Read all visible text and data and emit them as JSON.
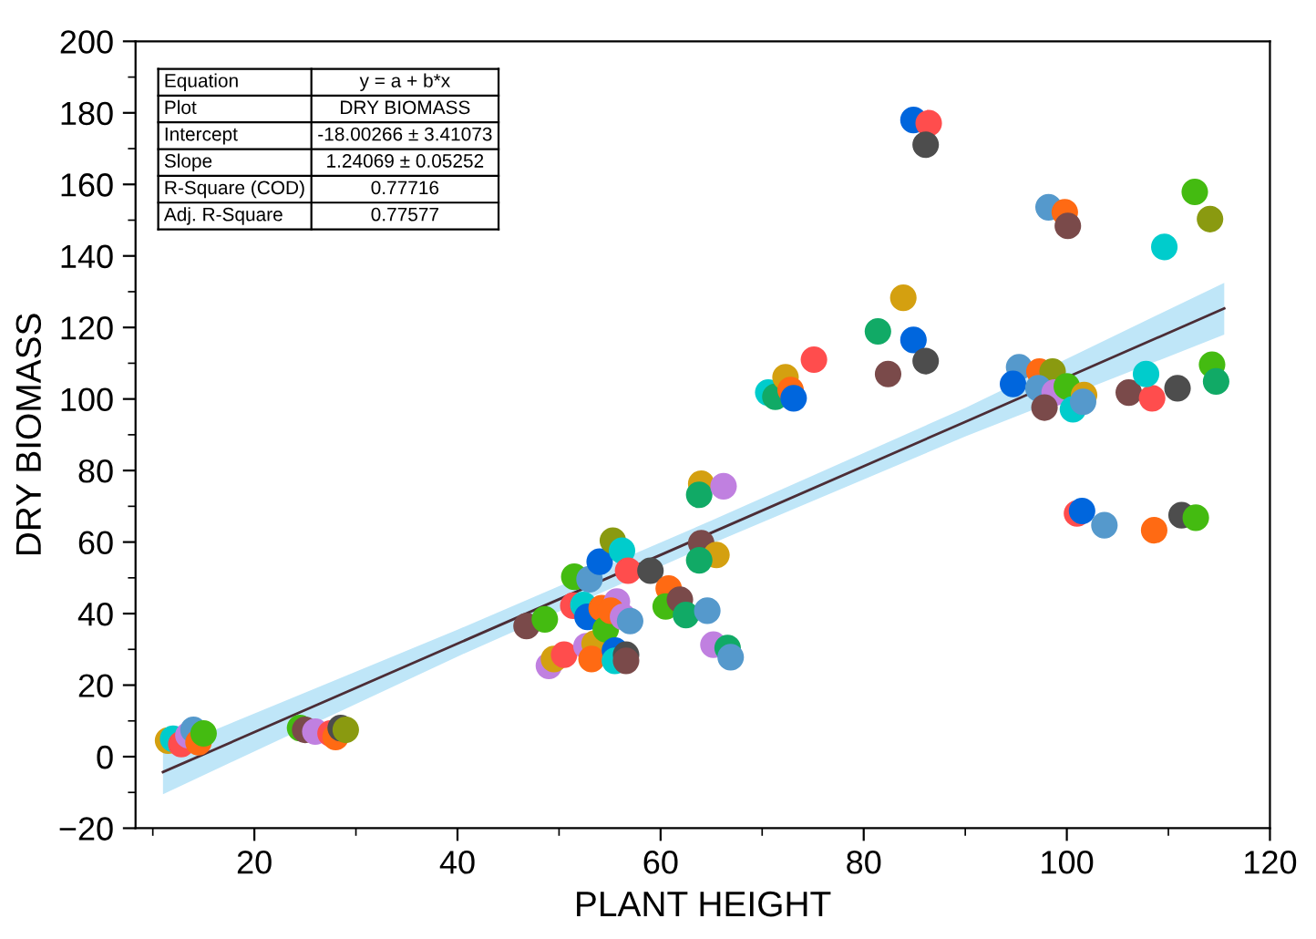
{
  "chart_data": {
    "type": "scatter",
    "xlabel": "PLANT HEIGHT",
    "ylabel": "DRY BIOMASS",
    "xlim": [
      8.3,
      120
    ],
    "ylim": [
      -20,
      200
    ],
    "xticks": [
      {
        "value": 10,
        "label": null
      },
      20,
      {
        "value": 30,
        "label": null
      },
      40,
      {
        "value": 50,
        "label": null
      },
      60,
      {
        "value": 70,
        "label": null
      },
      80,
      {
        "value": 90,
        "label": null
      },
      100,
      {
        "value": 110,
        "label": null
      },
      120
    ],
    "yticks": [
      -20,
      {
        "value": -10,
        "label": null
      },
      0,
      {
        "value": 10,
        "label": null
      },
      20,
      {
        "value": 30,
        "label": null
      },
      40,
      {
        "value": 50,
        "label": null
      },
      60,
      {
        "value": 70,
        "label": null
      },
      80,
      {
        "value": 90,
        "label": null
      },
      100,
      {
        "value": 110,
        "label": null
      },
      120,
      {
        "value": 130,
        "label": null
      },
      140,
      {
        "value": 150,
        "label": null
      },
      160,
      {
        "value": 170,
        "label": null
      },
      180,
      {
        "value": 190,
        "label": null
      },
      200
    ],
    "grid": false,
    "annotations": [
      "Equation",
      "y = a + b*x",
      "Plot",
      "DRY BIOMASS",
      "Intercept",
      "-18.00266 ± 3.41073",
      "Slope",
      "1.24069 ± 0.05252",
      "R-Square (COD)",
      "0.77716",
      "Adj. R-Square",
      "0.77577"
    ],
    "series": [
      {
        "type": "line",
        "color": "#4b2d36",
        "x": [
          11,
          40,
          65,
          90,
          115.5
        ],
        "values": [
          -4.3,
          31.6,
          62.6,
          93.6,
          125.3
        ],
        "lower": [
          -10.5,
          28,
          59.5,
          89.5,
          118
        ],
        "upper": [
          1.5,
          35.5,
          66,
          97.5,
          132.5
        ]
      },
      {
        "marker": "circle",
        "x": [
          11.5,
          12,
          12.8,
          13.5,
          14,
          14.5,
          15,
          24.5,
          25,
          26,
          27,
          27.5,
          28,
          28.5,
          29,
          46.8,
          48.6,
          49.0,
          49.5,
          50.5,
          51.5,
          53.0,
          51.4,
          52.4,
          52.8,
          52.7,
          53.5,
          53.2,
          54.0,
          54.2,
          54.6,
          55.3,
          56.2,
          56.8,
          55.7,
          55.1,
          56.3,
          57.0,
          55.5,
          55.5,
          56.6,
          56.6,
          59.0,
          60.8,
          60.5,
          61.9,
          62.5,
          64.0,
          63.8,
          66.2,
          64.0,
          65.5,
          63.8,
          64.6,
          65.2,
          66.6,
          66.9,
          70.6,
          71.3,
          72.3,
          72.8,
          73.1,
          75.1,
          81.4,
          82.4,
          83.9,
          84.9,
          86.4,
          86.1,
          84.9,
          86.1,
          98.2,
          99.8,
          100.1,
          95.3,
          94.7,
          97.3,
          98.6,
          97.2,
          98.8,
          97.8,
          100.0,
          100.6,
          101.7,
          101.6,
          106.1,
          108.4,
          107.8,
          110.9,
          109.6,
          112.6,
          114.1,
          114.3,
          114.7,
          101.0,
          101.5,
          103.7,
          108.6,
          111.3,
          112.7
        ],
        "values": [
          4.5,
          5,
          3.5,
          6,
          7.5,
          4,
          6.5,
          8,
          7.5,
          7,
          null,
          6.5,
          5.5,
          8,
          7.5,
          36.5,
          38.4,
          25.4,
          27.3,
          28.5,
          50.3,
          49.6,
          42.2,
          42.4,
          39.1,
          30.9,
          31.6,
          27.3,
          54.5,
          41.5,
          35.6,
          60.4,
          57.6,
          52.0,
          43.4,
          40.8,
          39.1,
          37.9,
          29.7,
          26.8,
          28.5,
          26.8,
          52.0,
          47.0,
          42.0,
          43.9,
          39.6,
          76.3,
          73.2,
          75.6,
          59.7,
          56.4,
          54.9,
          40.8,
          31.3,
          30.4,
          27.8,
          101.8,
          100.6,
          106.1,
          102.5,
          100.2,
          111.0,
          118.9,
          107.0,
          128.3,
          178.0,
          177.1,
          171.1,
          116.5,
          110.6,
          153.6,
          152.2,
          148.4,
          108.9,
          104.2,
          107.7,
          107.7,
          103.0,
          101.8,
          97.6,
          103.5,
          97.1,
          101.1,
          99.2,
          101.8,
          100.2,
          107.0,
          103.0,
          142.5,
          157.9,
          150.3,
          109.6,
          104.9,
          68.0,
          68.7,
          64.7,
          63.3,
          67.5,
          66.8
        ],
        "colors": [
          "#d4a010",
          "#00cccc",
          "#ff4d4d",
          "#c080e0",
          "#5599cc",
          "#ff6a13",
          "#44bb11",
          "#44bb11",
          "#7a4a4a",
          "#c080e0",
          "#5599cc",
          "#ff4d4d",
          "#ff6a13",
          "#4d4d4d",
          "#8a9a10",
          "#7a4a4a",
          "#44bb11",
          "#c080e0",
          "#d4a010",
          "#ff4d4d",
          "#44bb11",
          "#5599cc",
          "#ff4d4d",
          "#00cccc",
          "#0066dd",
          "#c080e0",
          "#d4a010",
          "#ff6a13",
          "#0066dd",
          "#ff6a13",
          "#44bb11",
          "#8a9a10",
          "#00cccc",
          "#ff4d4d",
          "#c080e0",
          "#ff6a13",
          "#c080e0",
          "#5599cc",
          "#0066dd",
          "#00cccc",
          "#4d4d4d",
          "#7a4a4a",
          "#4d4d4d",
          "#ff6a13",
          "#44bb11",
          "#7a4a4a",
          "#11aa66",
          "#d4a010",
          "#11aa66",
          "#c080e0",
          "#7a4a4a",
          "#d4a010",
          "#11aa66",
          "#5599cc",
          "#c080e0",
          "#11aa66",
          "#5599cc",
          "#00cccc",
          "#11aa66",
          "#d4a010",
          "#ff6a13",
          "#0066dd",
          "#ff4d4d",
          "#11aa66",
          "#7a4a4a",
          "#d4a010",
          "#0066dd",
          "#ff4d4d",
          "#4d4d4d",
          "#0066dd",
          "#4d4d4d",
          "#5599cc",
          "#ff6a13",
          "#7a4a4a",
          "#5599cc",
          "#0066dd",
          "#ff6a13",
          "#8a9a10",
          "#5599cc",
          "#c080e0",
          "#7a4a4a",
          "#44bb11",
          "#00cccc",
          "#d4a010",
          "#5599cc",
          "#7a4a4a",
          "#ff4d4d",
          "#00cccc",
          "#4d4d4d",
          "#00cccc",
          "#44bb11",
          "#8a9a10",
          "#44bb11",
          "#11aa66",
          "#ff4d4d",
          "#0066dd",
          "#5599cc",
          "#ff6a13",
          "#4d4d4d",
          "#44bb11"
        ]
      }
    ]
  }
}
